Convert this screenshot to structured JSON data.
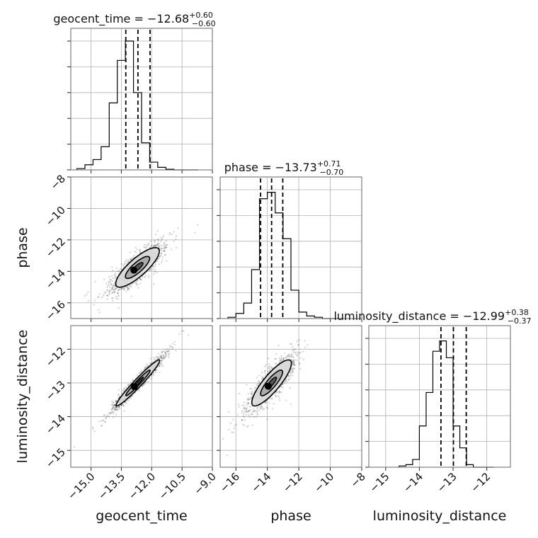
{
  "chart_data": {
    "type": "corner",
    "parameters": [
      {
        "name": "geocent_time",
        "label": "geocent_time",
        "range": [
          -16,
          -9
        ],
        "ticks": [
          -15.0,
          -13.5,
          -12.0,
          -10.5,
          -9.0
        ],
        "tick_labels": [
          "−15.0",
          "−13.5",
          "−12.0",
          "−10.5",
          "−9.0"
        ],
        "median": -12.68,
        "plus": 0.6,
        "minus": 0.6,
        "title_main": "geocent_time = −12.68",
        "title_sup": "+0.60",
        "title_sub": "−0.60",
        "hist_bins": [
          -15.7,
          -15.3,
          -14.9,
          -14.5,
          -14.1,
          -13.7,
          -13.3,
          -12.9,
          -12.5,
          -12.1,
          -11.7,
          -11.3,
          -10.9,
          -10.5,
          -10.1,
          -9.7
        ],
        "hist_counts": [
          0.01,
          0.04,
          0.08,
          0.18,
          0.52,
          0.85,
          1.0,
          0.6,
          0.21,
          0.06,
          0.02,
          0.005,
          0.0,
          0.0,
          0.0
        ]
      },
      {
        "name": "phase",
        "label": "phase",
        "range": [
          -17,
          -8
        ],
        "ticks": [
          -16,
          -14,
          -12,
          -10,
          -8
        ],
        "tick_labels": [
          "−16",
          "−14",
          "−12",
          "−10",
          "−8"
        ],
        "median": -13.73,
        "plus": 0.71,
        "minus": 0.7,
        "title_main": "phase = −13.73",
        "title_sup": "+0.71",
        "title_sub": "−0.70",
        "hist_bins": [
          -16.5,
          -16.0,
          -15.5,
          -15.0,
          -14.5,
          -14.0,
          -13.5,
          -13.0,
          -12.5,
          -12.0,
          -11.5,
          -11.0,
          -10.5,
          -10.0,
          -9.5
        ],
        "hist_counts": [
          0.01,
          0.04,
          0.12,
          0.38,
          0.93,
          0.98,
          0.82,
          0.62,
          0.22,
          0.05,
          0.02,
          0.01,
          0.0,
          0.0
        ]
      },
      {
        "name": "luminosity_distance",
        "label": "luminosity_distance",
        "range": [
          -15.5,
          -11.3
        ],
        "ticks": [
          -15,
          -14,
          -13,
          -12
        ],
        "tick_labels": [
          "−15",
          "−14",
          "−13",
          "−12"
        ],
        "median": -12.99,
        "plus": 0.38,
        "minus": 0.37,
        "title_main": "luminosity_distance = −12.99",
        "title_sup": "+0.38",
        "title_sub": "−0.37",
        "hist_bins": [
          -14.6,
          -14.4,
          -14.2,
          -14.0,
          -13.8,
          -13.6,
          -13.4,
          -13.2,
          -13.0,
          -12.8,
          -12.6,
          -12.4,
          -12.2,
          -12.0,
          -11.8
        ],
        "hist_counts": [
          0.01,
          0.02,
          0.06,
          0.32,
          0.58,
          0.9,
          0.98,
          0.85,
          0.32,
          0.15,
          0.02,
          0.0,
          0.0,
          0.0
        ]
      }
    ],
    "pairs": [
      {
        "x": "geocent_time",
        "y": "phase",
        "center": [
          -12.7,
          -13.75
        ],
        "sigma": [
          0.6,
          0.7
        ],
        "rho": 0.82
      },
      {
        "x": "geocent_time",
        "y": "luminosity_distance",
        "center": [
          -12.68,
          -13.0
        ],
        "sigma": [
          0.6,
          0.38
        ],
        "rho": 0.97
      },
      {
        "x": "phase",
        "y": "luminosity_distance",
        "center": [
          -13.73,
          -13.0
        ],
        "sigma": [
          0.7,
          0.38
        ],
        "rho": 0.85
      }
    ],
    "grid": true
  }
}
